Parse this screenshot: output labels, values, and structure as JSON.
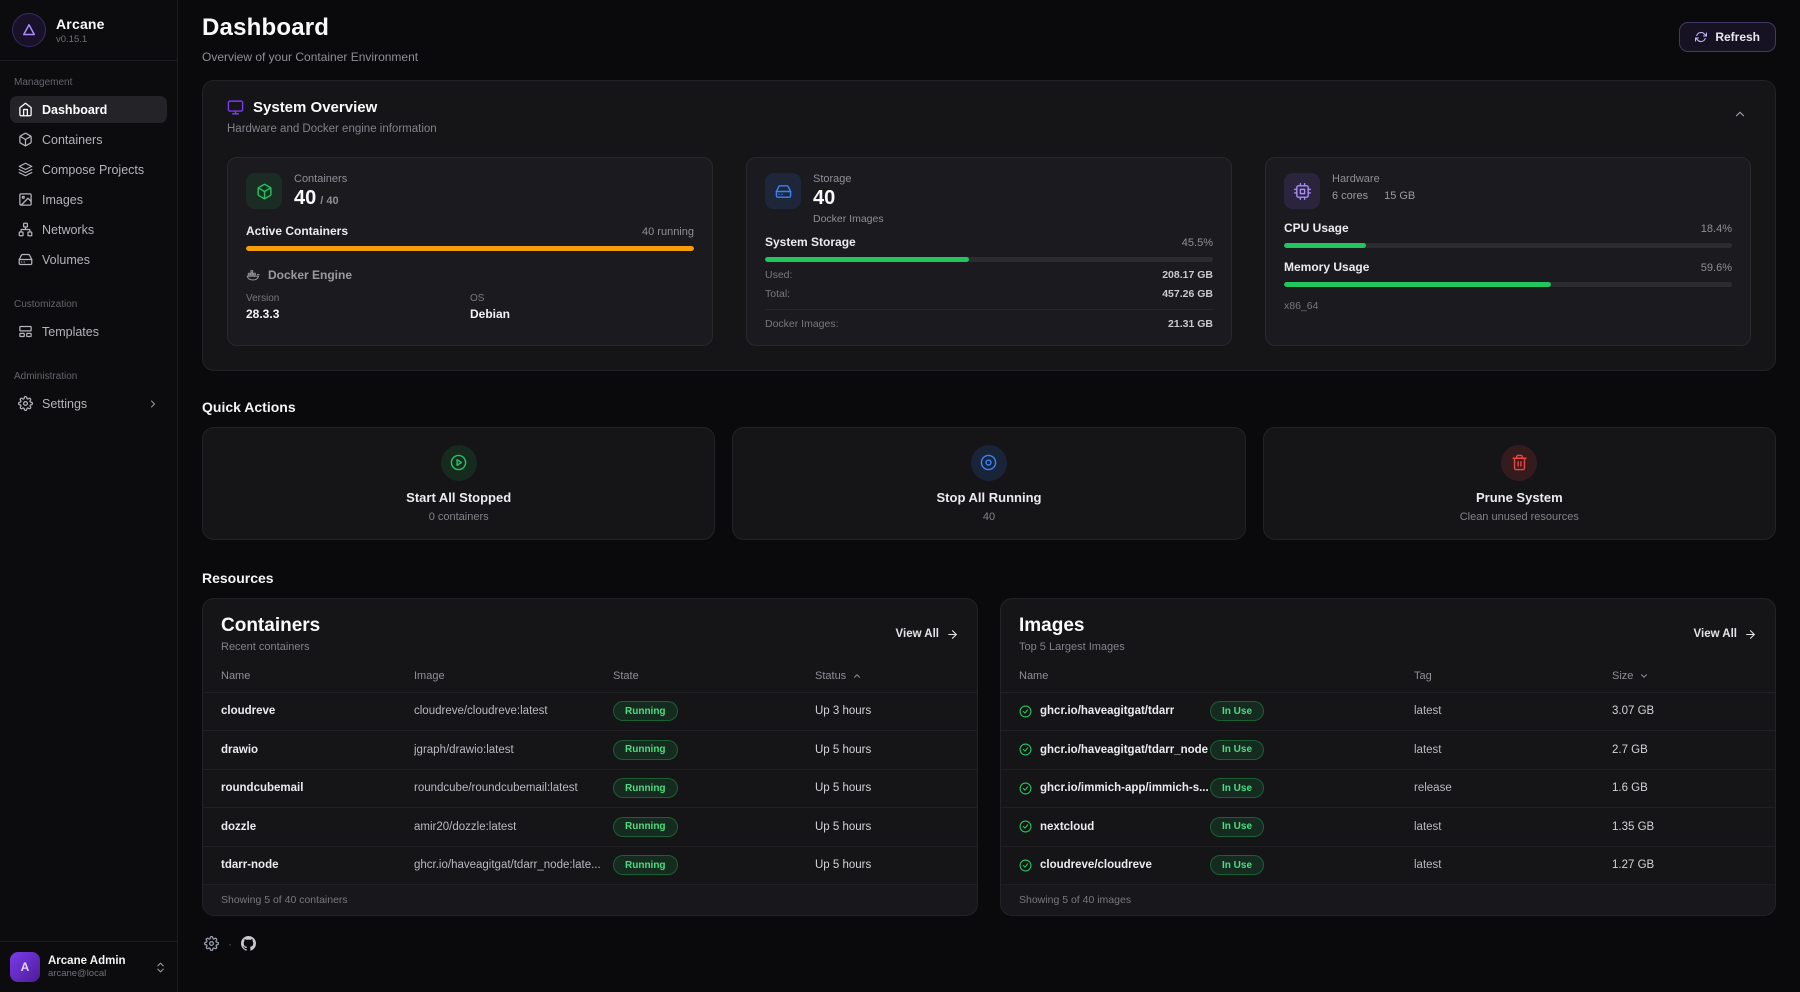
{
  "brand": {
    "name": "Arcane",
    "version": "v0.15.1",
    "logo_letter": "A"
  },
  "sidebar": {
    "sections": [
      {
        "label": "Management"
      },
      {
        "label": "Customization"
      },
      {
        "label": "Administration"
      }
    ],
    "items": {
      "dashboard": "Dashboard",
      "containers": "Containers",
      "compose": "Compose Projects",
      "images": "Images",
      "networks": "Networks",
      "volumes": "Volumes",
      "templates": "Templates",
      "settings": "Settings"
    },
    "user": {
      "name": "Arcane Admin",
      "email": "arcane@local",
      "avatar_letter": "A"
    }
  },
  "header": {
    "title": "Dashboard",
    "subtitle": "Overview of your Container Environment",
    "refresh_label": "Refresh"
  },
  "overview": {
    "title": "System Overview",
    "subtitle": "Hardware and Docker engine information",
    "containers": {
      "label": "Containers",
      "count": "40",
      "total": "/ 40",
      "active_label": "Active Containers",
      "running": "40 running",
      "bar_pct": 100,
      "engine_title": "Docker Engine",
      "version_label": "Version",
      "version": "28.3.3",
      "os_label": "OS",
      "os": "Debian"
    },
    "storage": {
      "label": "Storage",
      "count": "40",
      "sublabel": "Docker Images",
      "bar_label": "System Storage",
      "pct": "45.5%",
      "bar_pct": 45.5,
      "used_label": "Used:",
      "used": "208.17 GB",
      "total_label": "Total:",
      "total": "457.26 GB",
      "images_label": "Docker Images:",
      "images": "21.31 GB"
    },
    "hardware": {
      "label": "Hardware",
      "cores": "6 cores",
      "memory": "15 GB",
      "cpu_label": "CPU Usage",
      "cpu_pct": "18.4%",
      "cpu_bar": 18.4,
      "mem_label": "Memory Usage",
      "mem_pct": "59.6%",
      "mem_bar": 59.6,
      "arch": "x86_64"
    }
  },
  "quick_actions": {
    "title": "Quick Actions",
    "start": {
      "label": "Start All Stopped",
      "sub": "0 containers"
    },
    "stop": {
      "label": "Stop All Running",
      "sub": "40"
    },
    "prune": {
      "label": "Prune System",
      "sub": "Clean unused resources"
    }
  },
  "resources": {
    "title": "Resources",
    "containers": {
      "title": "Containers",
      "subtitle": "Recent containers",
      "view_all": "View All",
      "col_name": "Name",
      "col_image": "Image",
      "col_state": "State",
      "col_status": "Status",
      "rows": [
        {
          "name": "cloudreve",
          "image": "cloudreve/cloudreve:latest",
          "state": "Running",
          "status": "Up 3 hours"
        },
        {
          "name": "drawio",
          "image": "jgraph/drawio:latest",
          "state": "Running",
          "status": "Up 5 hours"
        },
        {
          "name": "roundcubemail",
          "image": "roundcube/roundcubemail:latest",
          "state": "Running",
          "status": "Up 5 hours"
        },
        {
          "name": "dozzle",
          "image": "amir20/dozzle:latest",
          "state": "Running",
          "status": "Up 5 hours"
        },
        {
          "name": "tdarr-node",
          "image": "ghcr.io/haveagitgat/tdarr_node:late...",
          "state": "Running",
          "status": "Up 5 hours"
        }
      ],
      "footer": "Showing 5 of 40 containers"
    },
    "images": {
      "title": "Images",
      "subtitle": "Top 5 Largest Images",
      "view_all": "View All",
      "col_name": "Name",
      "col_tag": "Tag",
      "col_size": "Size",
      "rows": [
        {
          "name": "ghcr.io/haveagitgat/tdarr",
          "badge": "In Use",
          "tag": "latest",
          "size": "3.07 GB"
        },
        {
          "name": "ghcr.io/haveagitgat/tdarr_node",
          "badge": "In Use",
          "tag": "latest",
          "size": "2.7 GB"
        },
        {
          "name": "ghcr.io/immich-app/immich-s...",
          "badge": "In Use",
          "tag": "release",
          "size": "1.6 GB"
        },
        {
          "name": "nextcloud",
          "badge": "In Use",
          "tag": "latest",
          "size": "1.35 GB"
        },
        {
          "name": "cloudreve/cloudreve",
          "badge": "In Use",
          "tag": "latest",
          "size": "1.27 GB"
        }
      ],
      "footer": "Showing 5 of 40 images"
    }
  },
  "colors": {
    "accent_purple": "#7c3aed",
    "green": "#22c55e",
    "orange": "#f59e0b",
    "blue": "#3b82f6",
    "red": "#ef4444"
  }
}
